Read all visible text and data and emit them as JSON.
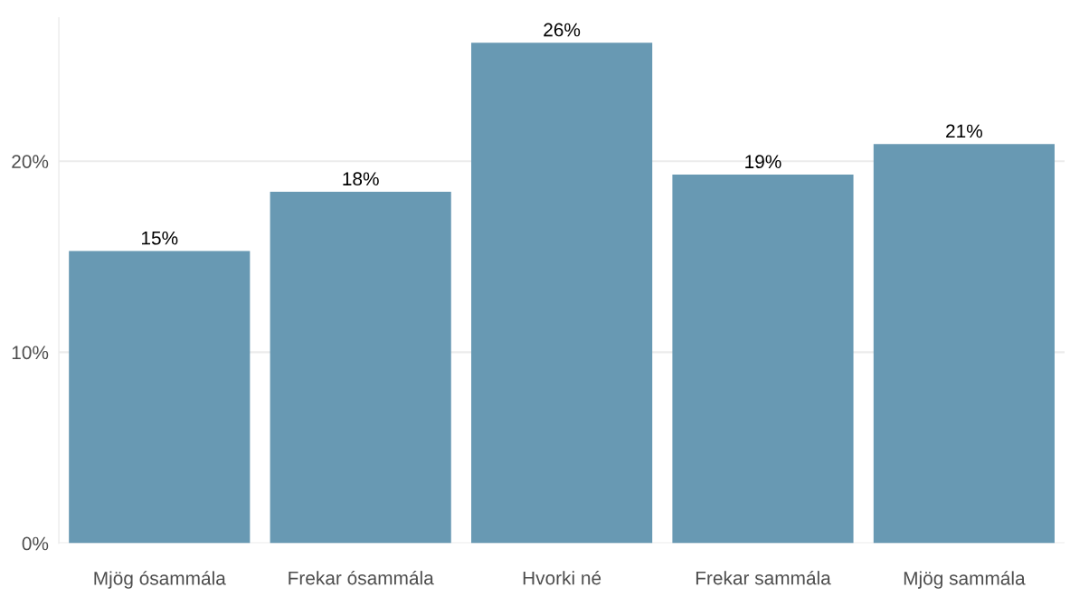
{
  "chart_data": {
    "type": "bar",
    "categories": [
      "Mjög ósammála",
      "Frekar ósammála",
      "Hvorki né",
      "Frekar sammála",
      "Mjög sammála"
    ],
    "values": [
      15.3,
      18.4,
      26.2,
      19.3,
      20.9
    ],
    "value_labels": [
      "15%",
      "18%",
      "26%",
      "19%",
      "21%"
    ],
    "color": "#6899b3",
    "ylim": [
      0,
      27.5
    ],
    "yticks": [
      {
        "value": 0,
        "label": "0%"
      },
      {
        "value": 10,
        "label": "10%"
      },
      {
        "value": 20,
        "label": "20%"
      }
    ],
    "grid": "y"
  }
}
